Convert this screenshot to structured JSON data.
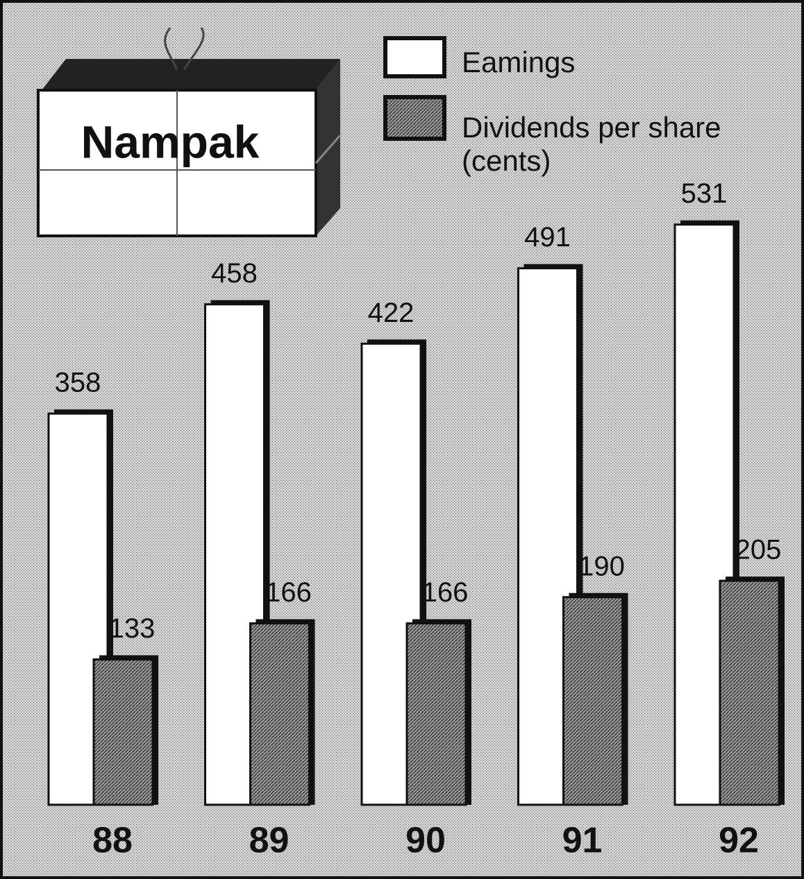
{
  "chart_data": {
    "type": "bar",
    "title": "Nampak",
    "categories": [
      "88",
      "89",
      "90",
      "91",
      "92"
    ],
    "series": [
      {
        "name": "Eamings",
        "color": "#ffffff",
        "values": [
          358,
          458,
          422,
          491,
          531
        ]
      },
      {
        "name": "Dividends per share (cents)",
        "color": "#8a8a8a",
        "values": [
          133,
          166,
          166,
          190,
          205
        ]
      }
    ]
  }
}
